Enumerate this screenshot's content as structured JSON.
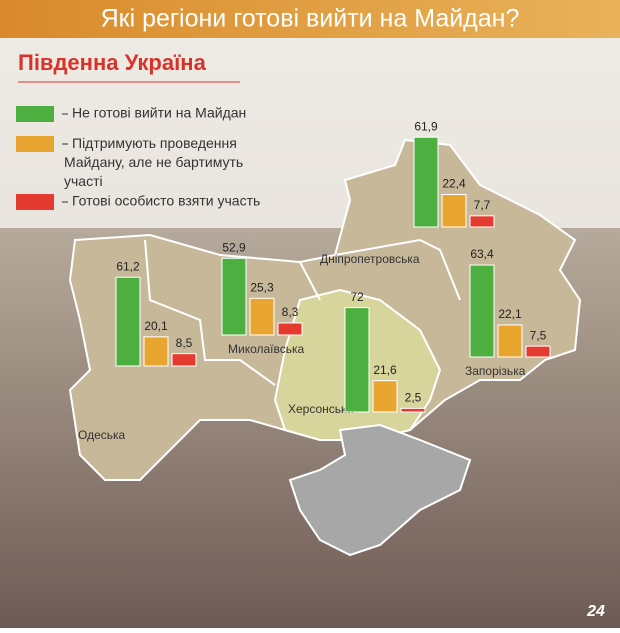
{
  "chart_data": {
    "type": "bar",
    "title": "Які регіони готові вийти на Майдан?",
    "subtitle": "Південна Україна",
    "categories": [
      "Одеська",
      "Миколаївська",
      "Херсонська",
      "Дніпропетровська",
      "Запорізька"
    ],
    "series": [
      {
        "name": "Не готові вийти на Майдан",
        "color": "#4caf3f",
        "values": [
          61.2,
          52.9,
          72,
          61.9,
          63.4
        ],
        "value_labels": [
          "61,2",
          "52,9",
          "72",
          "61,9",
          "63,4"
        ]
      },
      {
        "name": "Підтримують проведення Майдану, але не бартимуть участі",
        "color": "#e8a630",
        "values": [
          20.1,
          25.3,
          21.6,
          22.4,
          22.1
        ],
        "value_labels": [
          "20,1",
          "25,3",
          "21,6",
          "22,4",
          "22,1"
        ]
      },
      {
        "name": "Готові особисто взяти участь",
        "color": "#e53a2f",
        "values": [
          8.5,
          8.3,
          2.5,
          7.7,
          7.5
        ],
        "value_labels": [
          "8,5",
          "8,3",
          "2,5",
          "7,7",
          "7,5"
        ]
      }
    ]
  },
  "logo": "24"
}
